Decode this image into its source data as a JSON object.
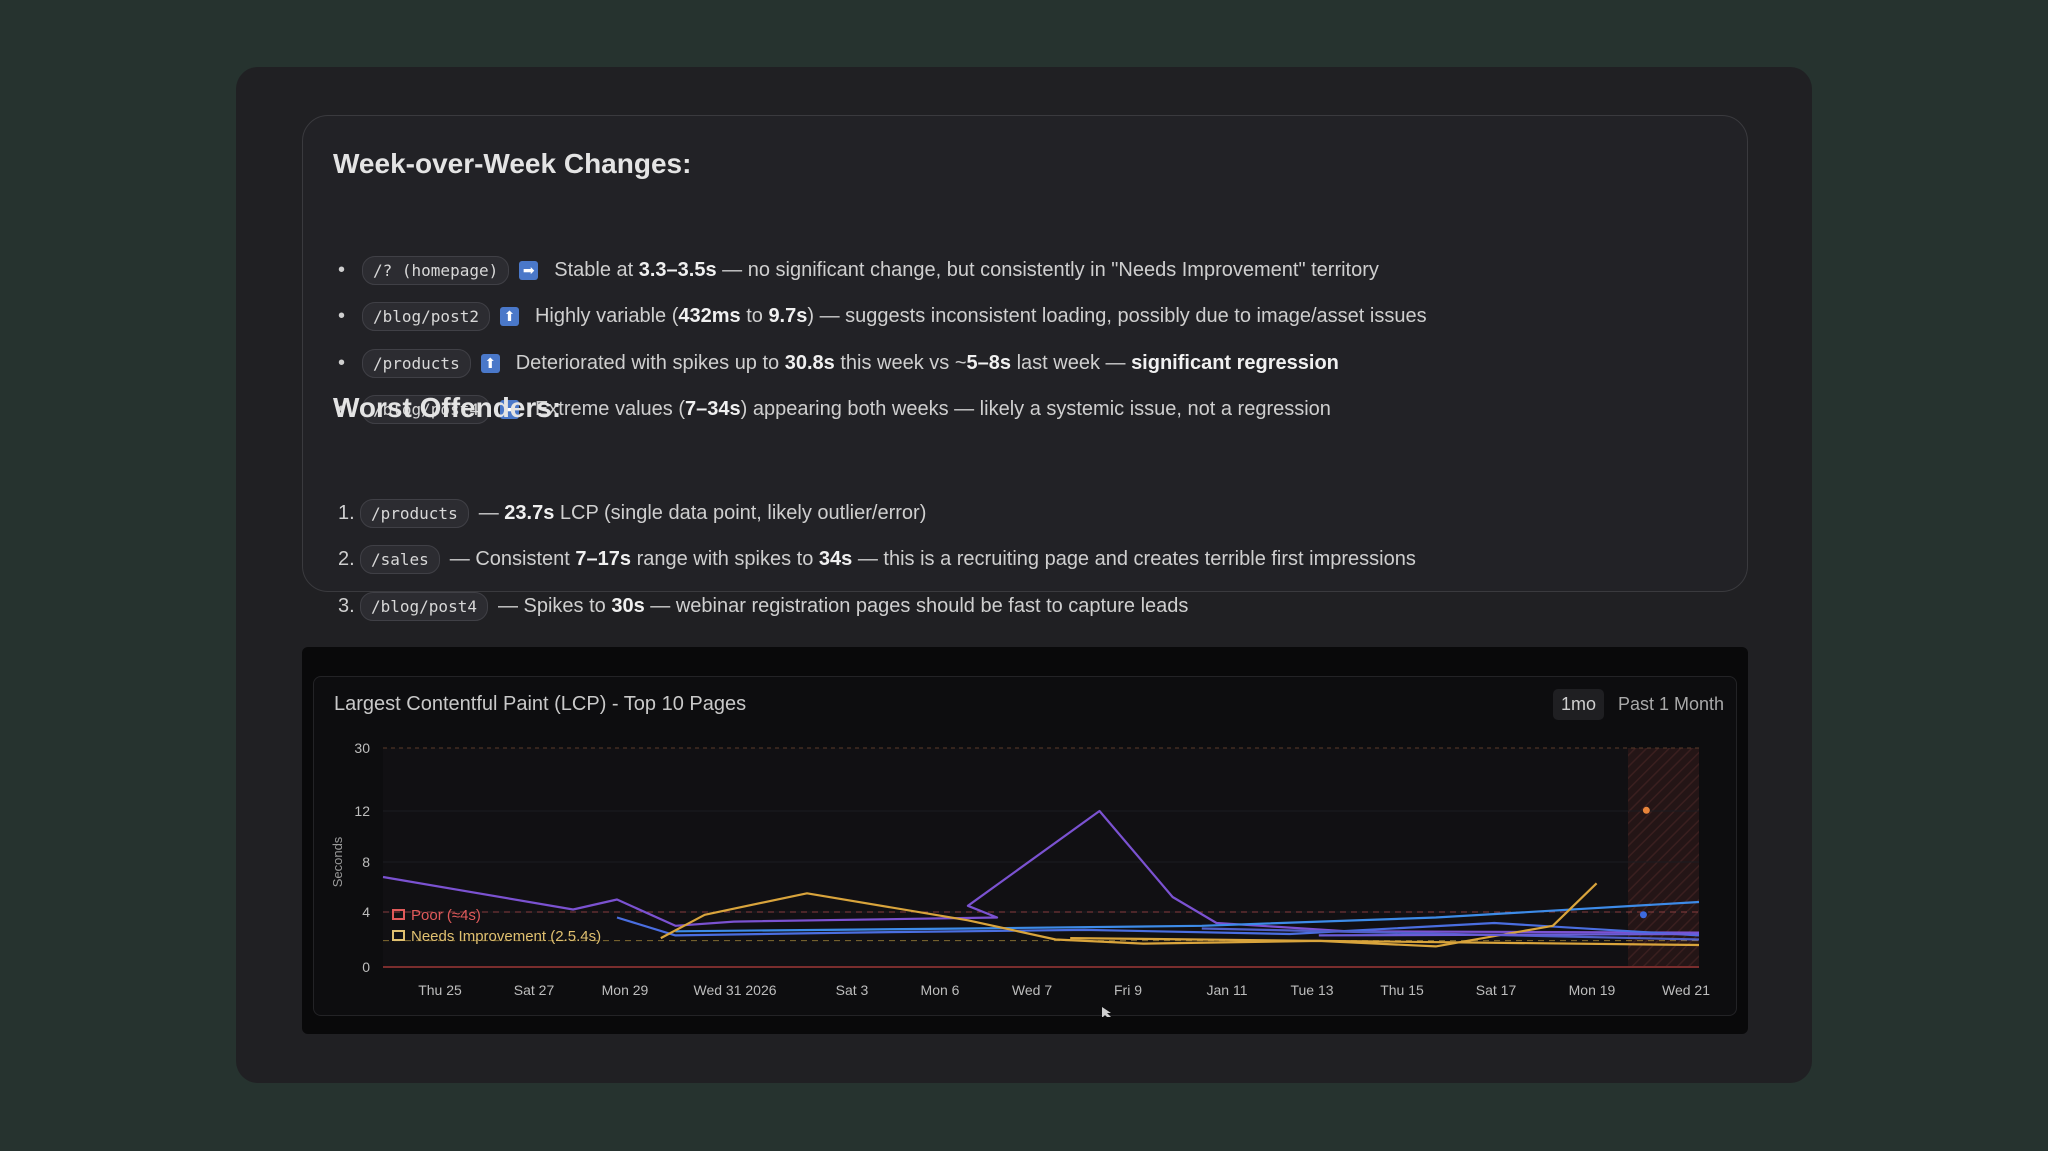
{
  "week_section": {
    "title": "Week-over-Week Changes:",
    "items": [
      {
        "marker": "•",
        "code": "/? (homepage)",
        "arrow": "➡",
        "parts": [
          {
            "t": "Stable at "
          },
          {
            "t": "3.3–3.5s",
            "b": true
          },
          {
            "t": " — no significant change, but consistently in \"Needs Improvement\" territory"
          }
        ]
      },
      {
        "marker": "•",
        "code": "/blog/post2",
        "arrow": "⬆",
        "parts": [
          {
            "t": "Highly variable ("
          },
          {
            "t": "432ms",
            "b": true
          },
          {
            "t": " to "
          },
          {
            "t": "9.7s",
            "b": true
          },
          {
            "t": ") — suggests inconsistent loading, possibly due to image/asset issues"
          }
        ]
      },
      {
        "marker": "•",
        "code": "/products",
        "arrow": "⬆",
        "parts": [
          {
            "t": "Deteriorated with spikes up to "
          },
          {
            "t": "30.8s",
            "b": true
          },
          {
            "t": " this week vs ~"
          },
          {
            "t": "5–8s",
            "b": true
          },
          {
            "t": " last week — "
          },
          {
            "t": "significant regression",
            "b": true
          }
        ]
      },
      {
        "marker": "•",
        "code": "/blog/post4",
        "arrow": "➡",
        "parts": [
          {
            "t": "Extreme values ("
          },
          {
            "t": "7–34s",
            "b": true
          },
          {
            "t": ") appearing both weeks — likely a systemic issue, not a regression"
          }
        ]
      }
    ]
  },
  "worst_section": {
    "title": "Worst Offenders:",
    "items": [
      {
        "marker": "1.",
        "code": "/products",
        "parts": [
          {
            "t": "— "
          },
          {
            "t": "23.7s",
            "b": true
          },
          {
            "t": " LCP (single data point, likely outlier/error)"
          }
        ]
      },
      {
        "marker": "2.",
        "code": "/sales",
        "parts": [
          {
            "t": "— Consistent "
          },
          {
            "t": "7–17s",
            "b": true
          },
          {
            "t": " range with spikes to "
          },
          {
            "t": "34s",
            "b": true
          },
          {
            "t": " — this is a recruiting page and creates terrible first impressions"
          }
        ]
      },
      {
        "marker": "3.",
        "code": "/blog/post4",
        "parts": [
          {
            "t": "— Spikes to "
          },
          {
            "t": "30s",
            "b": true
          },
          {
            "t": " — webinar registration pages should be fast to capture leads"
          }
        ]
      }
    ]
  },
  "chart_panel": {
    "title": "Largest Contentful Paint (LCP) - Top 10 Pages",
    "range_badge": "1mo",
    "range_label": "Past 1 Month"
  },
  "chart_data": {
    "type": "line",
    "ylabel": "Seconds",
    "y_ticks": [
      "0",
      "4",
      "8",
      "12",
      "30"
    ],
    "y_scale": "piecewise",
    "x_ticks": [
      "Thu 25",
      "Sat 27",
      "Mon 29",
      "Wed 31 2026",
      "Sat 3",
      "Mon 6",
      "Wed 7",
      "Fri 9",
      "Jan 11",
      "Tue 13",
      "Thu 15",
      "Sat 17",
      "Mon 19",
      "Wed 21"
    ],
    "x_start_date": "2025-12-24",
    "thresholds": [
      {
        "name": "Poor (≈4s)",
        "value": 4,
        "color": "#e05a5a"
      },
      {
        "name": "Needs Improvement (2.5.4s)",
        "value": 2.5,
        "color": "#e0b84a"
      }
    ],
    "series": [
      {
        "color": "#7b52d1",
        "points": [
          [
            0,
            6.8
          ],
          [
            6.5,
            4.2
          ],
          [
            8,
            5
          ],
          [
            10,
            3
          ],
          [
            12,
            3.3
          ],
          [
            21,
            3.6
          ],
          [
            20,
            4.5
          ],
          [
            24.5,
            12
          ],
          [
            27,
            5.2
          ],
          [
            28.5,
            3.2
          ],
          [
            33,
            2.6
          ],
          [
            45,
            2.5
          ]
        ]
      },
      {
        "color": "#4a6ee0",
        "points": [
          [
            8,
            3.6
          ],
          [
            10,
            2.3
          ],
          [
            16,
            2.5
          ],
          [
            24,
            2.7
          ],
          [
            31,
            2.4
          ],
          [
            38,
            3.2
          ],
          [
            45,
            2.3
          ]
        ]
      },
      {
        "color": "#3d8be8",
        "points": [
          [
            10,
            2.6
          ],
          [
            20,
            2.8
          ],
          [
            28,
            3
          ],
          [
            36,
            3.6
          ],
          [
            45,
            4.8
          ]
        ]
      },
      {
        "color": "#d9a43c",
        "points": [
          [
            9.5,
            2.1
          ],
          [
            11,
            3.8
          ],
          [
            14.5,
            5.5
          ],
          [
            20,
            3.4
          ],
          [
            23,
            2
          ],
          [
            26,
            1.7
          ],
          [
            32,
            1.9
          ],
          [
            36,
            1.5
          ],
          [
            40,
            3
          ],
          [
            41.5,
            6.3
          ]
        ]
      },
      {
        "color": "#d9a43c",
        "points": [
          [
            23.5,
            2.1
          ],
          [
            45,
            1.6
          ]
        ]
      },
      {
        "color": "#5060c8",
        "points": [
          [
            28,
            2.8
          ],
          [
            45,
            2
          ]
        ]
      },
      {
        "color": "#6a5cd8",
        "points": [
          [
            32,
            2.3
          ],
          [
            45,
            2.4
          ]
        ]
      }
    ],
    "scatter": [
      {
        "color": "#e8843a",
        "x": 43.2,
        "y": 12.2
      },
      {
        "color": "#3d6be0",
        "x": 43.1,
        "y": 3.8
      }
    ]
  }
}
